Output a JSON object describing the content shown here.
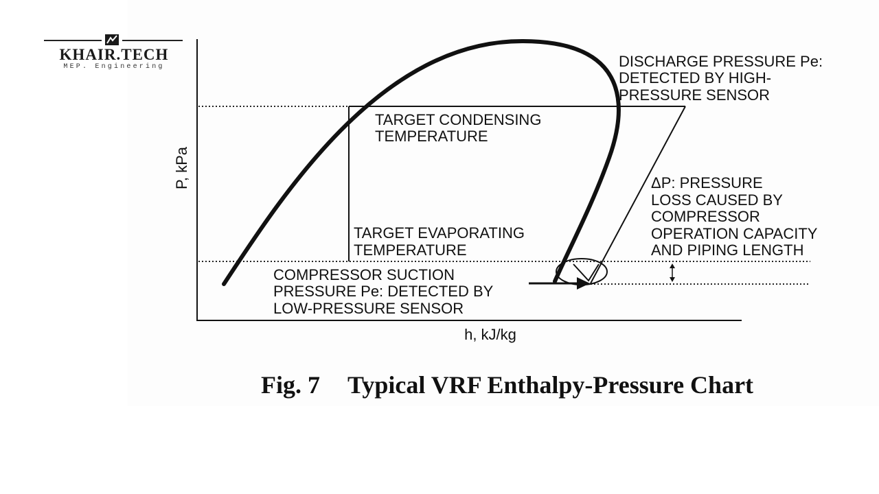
{
  "logo": {
    "name": "KHAIR.TECH",
    "tagline": "MEP. Engineering"
  },
  "diagram": {
    "y_axis_label": "P, kPa",
    "x_axis_label": "h, kJ/kg",
    "labels": {
      "discharge": [
        "DISCHARGE PRESSURE Pe:",
        "DETECTED BY HIGH-",
        "PRESSURE SENSOR"
      ],
      "target_condensing": [
        "TARGET CONDENSING",
        "TEMPERATURE"
      ],
      "target_evaporating": [
        "TARGET EVAPORATING",
        "TEMPERATURE"
      ],
      "pressure_loss": [
        "ΔP: PRESSURE",
        "LOSS CAUSED BY",
        "COMPRESSOR",
        "OPERATION CAPACITY",
        "AND PIPING LENGTH"
      ],
      "suction": [
        "COMPRESSOR SUCTION",
        "PRESSURE Pe: DETECTED BY",
        "LOW-PRESSURE SENSOR"
      ]
    }
  },
  "caption": {
    "fig_number": "Fig. 7",
    "title": "Typical VRF Enthalpy-Pressure Chart"
  }
}
